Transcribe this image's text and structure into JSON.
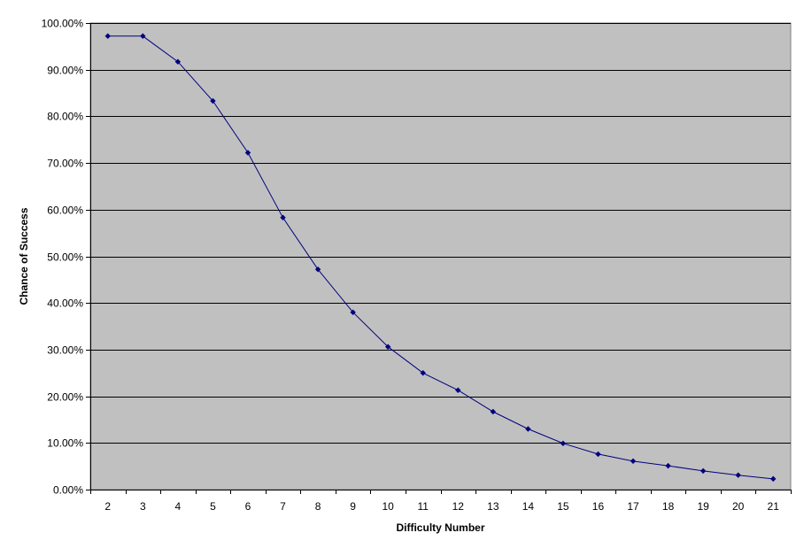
{
  "chart_data": {
    "type": "line",
    "title": "",
    "xlabel": "Difficulty Number",
    "ylabel": "Chance of Success",
    "categories": [
      "2",
      "3",
      "4",
      "5",
      "6",
      "7",
      "8",
      "9",
      "10",
      "11",
      "12",
      "13",
      "14",
      "15",
      "16",
      "17",
      "18",
      "19",
      "20",
      "21"
    ],
    "series": [
      {
        "values": [
          97.2,
          97.2,
          91.7,
          83.3,
          72.2,
          58.3,
          47.2,
          38.0,
          30.6,
          25.0,
          21.3,
          16.7,
          13.0,
          9.9,
          7.6,
          6.1,
          5.1,
          4.0,
          3.1,
          2.3
        ]
      }
    ],
    "ylim": [
      0,
      100
    ],
    "yticks": [
      "0.00%",
      "10.00%",
      "20.00%",
      "30.00%",
      "40.00%",
      "50.00%",
      "60.00%",
      "70.00%",
      "80.00%",
      "90.00%",
      "100.00%"
    ],
    "grid": "horizontal",
    "legend": "none",
    "colors": {
      "plot_background": "#c0c0c0",
      "series_line": "#000080",
      "gridline": "#000000"
    }
  }
}
